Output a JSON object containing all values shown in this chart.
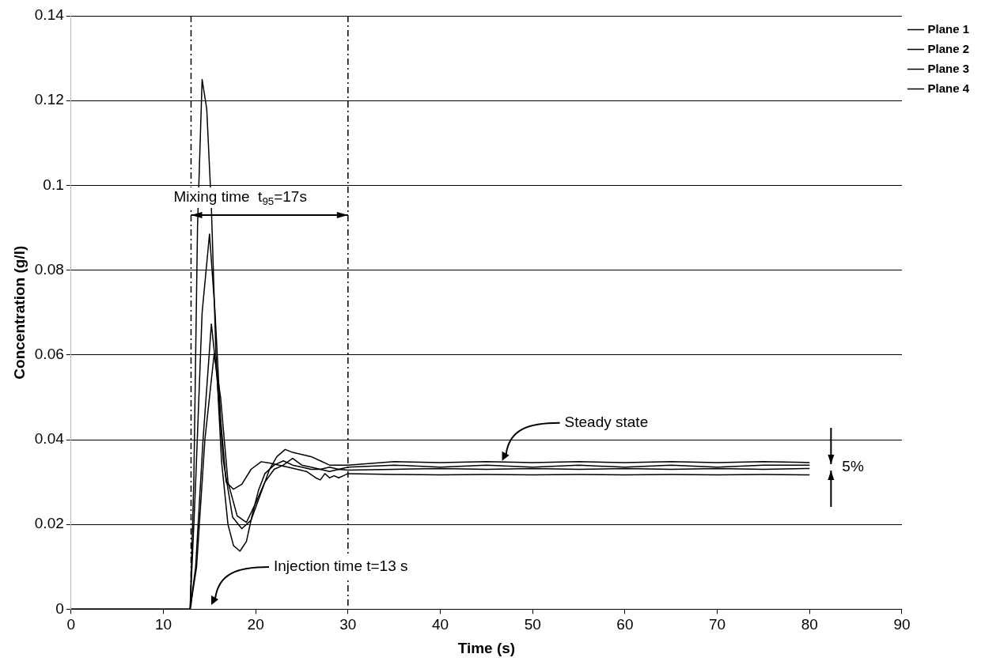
{
  "chart_data": {
    "type": "line",
    "xlabel": "Time (s)",
    "ylabel": "Concentration (g/l)",
    "xlim": [
      0,
      90
    ],
    "xticks": [
      0,
      10,
      20,
      30,
      40,
      50,
      60,
      70,
      80,
      90
    ],
    "ylim": [
      0,
      0.14
    ],
    "yticks": [
      0,
      0.02,
      0.04,
      0.06,
      0.08,
      0.1,
      0.12,
      0.14
    ],
    "grid": "y",
    "legend": "top right",
    "marker": "none",
    "line_style": "solid",
    "series": [
      {
        "name": "Plane 1",
        "color": "#000000",
        "x": [
          0,
          5,
          10,
          12.9,
          13.3,
          13.7,
          14.2,
          14.7,
          15.2,
          15.7,
          16.3,
          17,
          17.6,
          18.3,
          19,
          19.6,
          20.3,
          21,
          22,
          23,
          24,
          25,
          26,
          27,
          28,
          29,
          30,
          35,
          40,
          45,
          50,
          55,
          60,
          65,
          70,
          75,
          80
        ],
        "values": [
          0,
          0,
          0,
          0,
          0.03,
          0.09,
          0.125,
          0.118,
          0.095,
          0.06,
          0.035,
          0.02,
          0.015,
          0.0137,
          0.016,
          0.022,
          0.028,
          0.032,
          0.034,
          0.035,
          0.034,
          0.0335,
          0.033,
          0.033,
          0.0335,
          0.033,
          0.0335,
          0.034,
          0.0335,
          0.034,
          0.0335,
          0.034,
          0.0335,
          0.034,
          0.0335,
          0.034,
          0.034
        ]
      },
      {
        "name": "Plane 2",
        "color": "#000000",
        "x": [
          0,
          5,
          10,
          12.9,
          13.5,
          14.2,
          15,
          15.6,
          16.2,
          16.8,
          17.6,
          18.5,
          19.5,
          20.6,
          21.5,
          22.5,
          23.5,
          24.5,
          25.5,
          26.5,
          27,
          27.5,
          28,
          28.5,
          29,
          29.5,
          30,
          35,
          40,
          45,
          50,
          55,
          60,
          65,
          70,
          75,
          80
        ],
        "values": [
          0,
          0,
          0,
          0,
          0.03,
          0.07,
          0.0885,
          0.07,
          0.045,
          0.03,
          0.0283,
          0.0295,
          0.033,
          0.0348,
          0.0345,
          0.034,
          0.0335,
          0.033,
          0.0325,
          0.031,
          0.0305,
          0.032,
          0.031,
          0.0315,
          0.031,
          0.0315,
          0.032,
          0.0318,
          0.0317,
          0.0318,
          0.0317,
          0.0318,
          0.0317,
          0.0318,
          0.0317,
          0.0318,
          0.0317
        ]
      },
      {
        "name": "Plane 3",
        "color": "#000000",
        "x": [
          0,
          5,
          10,
          12.9,
          13.5,
          14.3,
          15.2,
          15.8,
          16.5,
          17.5,
          18.5,
          19.5,
          20.5,
          21.5,
          22.3,
          23.2,
          24,
          25,
          26,
          27,
          28,
          29,
          30,
          35,
          40,
          45,
          50,
          55,
          60,
          65,
          70,
          75,
          80
        ],
        "values": [
          0,
          0,
          0,
          0,
          0.01,
          0.04,
          0.0673,
          0.055,
          0.035,
          0.0217,
          0.019,
          0.021,
          0.027,
          0.033,
          0.036,
          0.0377,
          0.037,
          0.0365,
          0.036,
          0.035,
          0.034,
          0.034,
          0.034,
          0.0348,
          0.0346,
          0.0348,
          0.0346,
          0.0348,
          0.0346,
          0.0348,
          0.0346,
          0.0348,
          0.0346
        ]
      },
      {
        "name": "Plane 4",
        "color": "#000000",
        "x": [
          0,
          5,
          10,
          12.9,
          13.6,
          14.5,
          15.5,
          16.2,
          17,
          18,
          19,
          20,
          21,
          22,
          23,
          24,
          25,
          26,
          27,
          28,
          29,
          30,
          35,
          40,
          45,
          50,
          55,
          60,
          65,
          70,
          75,
          80
        ],
        "values": [
          0,
          0,
          0,
          0,
          0.01,
          0.04,
          0.0602,
          0.05,
          0.03,
          0.022,
          0.0205,
          0.025,
          0.03,
          0.033,
          0.034,
          0.0356,
          0.034,
          0.0335,
          0.033,
          0.0325,
          0.033,
          0.0328,
          0.033,
          0.0332,
          0.033,
          0.0332,
          0.033,
          0.0332,
          0.033,
          0.0332,
          0.033,
          0.0332
        ]
      }
    ],
    "ref_lines": [
      {
        "axis": "x",
        "value": 13,
        "line_style": "dashed"
      },
      {
        "axis": "x",
        "value": 30,
        "line_style": "dashed"
      }
    ],
    "annotations": [
      {
        "text": "Mixing time  t$_{95}$=17s",
        "x": 13,
        "y": 0.093
      },
      "Injection time t=13 s",
      "Steady state",
      "5%"
    ]
  }
}
